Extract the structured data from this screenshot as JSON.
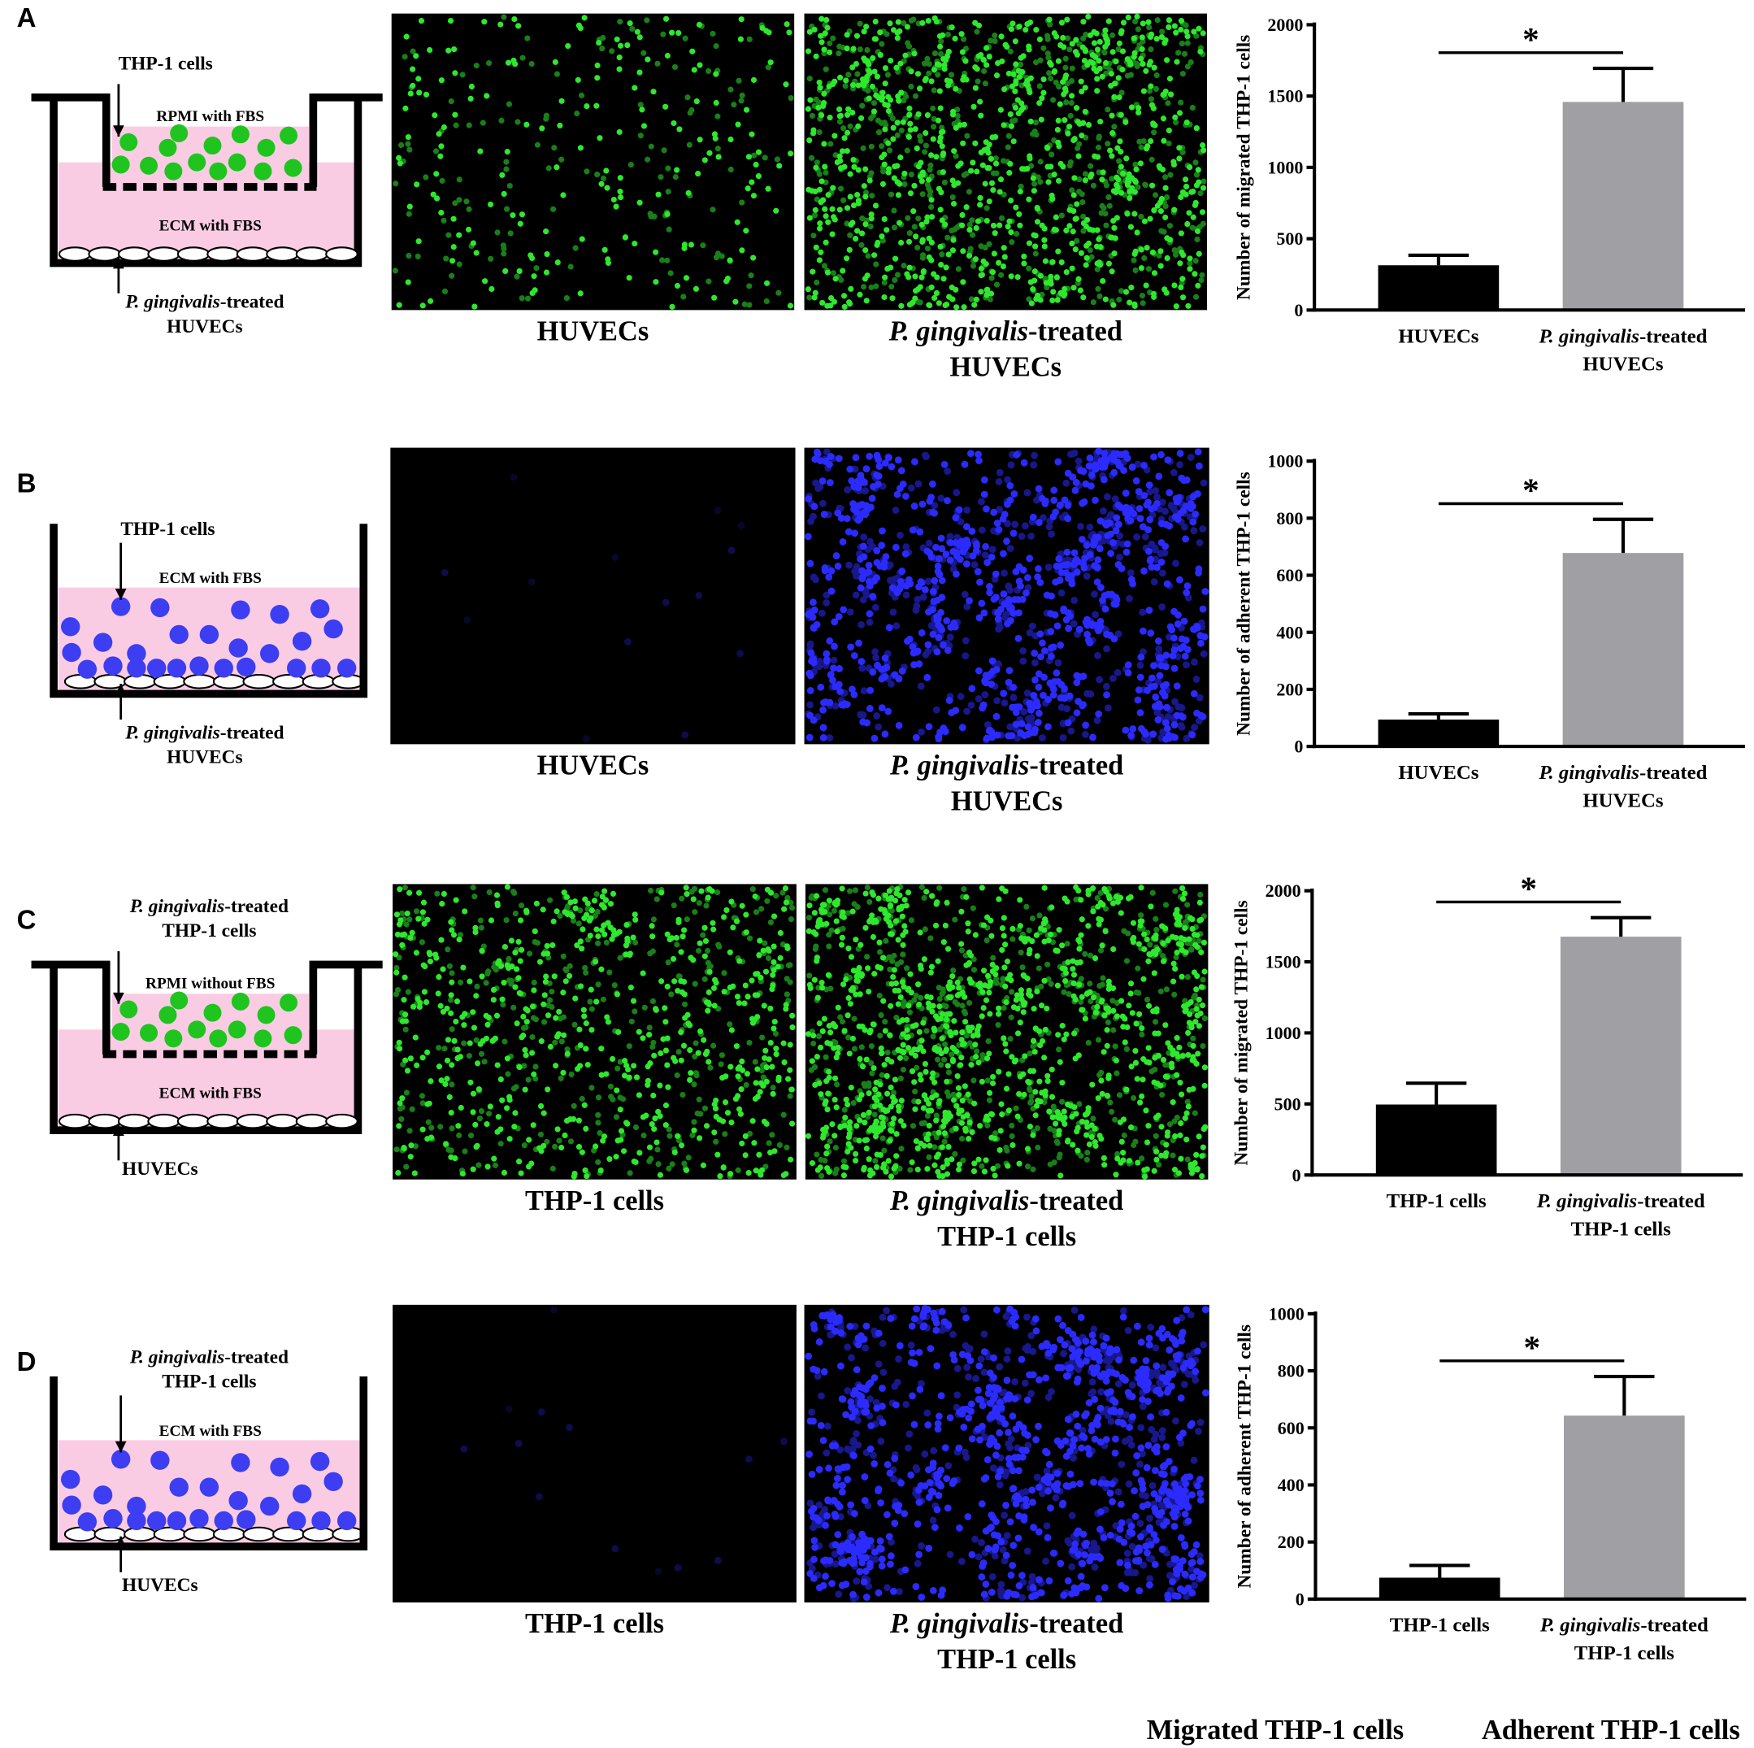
{
  "panels": [
    {
      "letter": "A",
      "diagram": {
        "layout": "transwell",
        "cell_color": "#1fc41f",
        "top_label": [
          [
            {
              "text": "THP-1 cells"
            }
          ]
        ],
        "insert_medium": "RPMI with FBS",
        "well_medium": "ECM with FBS",
        "bottom_label": [
          [
            {
              "text": "P. gingivalis",
              "italic": true
            },
            {
              "text": "-treated"
            }
          ],
          [
            {
              "text": "HUVECs"
            }
          ]
        ]
      },
      "images": [
        {
          "color": "#2ee82e",
          "caption": [
            [
              {
                "text": "HUVECs"
              }
            ]
          ]
        },
        {
          "color": "#2ee82e",
          "caption": [
            [
              {
                "text": "P. gingivalis",
                "italic": true
              },
              {
                "text": "-treated"
              }
            ],
            [
              {
                "text": "HUVECs"
              }
            ]
          ]
        }
      ]
    },
    {
      "letter": "B",
      "diagram": {
        "layout": "plate",
        "cell_color": "#3d3df2",
        "top_label": [
          [
            {
              "text": "THP-1 cells"
            }
          ]
        ],
        "well_medium": "ECM with FBS",
        "bottom_label": [
          [
            {
              "text": "P. gingivalis",
              "italic": true
            },
            {
              "text": "-treated"
            }
          ],
          [
            {
              "text": "HUVECs"
            }
          ]
        ]
      },
      "images": [
        {
          "color": "#2b2bff",
          "caption": [
            [
              {
                "text": "HUVECs"
              }
            ]
          ]
        },
        {
          "color": "#2b2bff",
          "caption": [
            [
              {
                "text": "P. gingivalis",
                "italic": true
              },
              {
                "text": "-treated"
              }
            ],
            [
              {
                "text": "HUVECs"
              }
            ]
          ]
        }
      ]
    },
    {
      "letter": "C",
      "diagram": {
        "layout": "transwell",
        "cell_color": "#1fc41f",
        "top_label": [
          [
            {
              "text": "P. gingivalis",
              "italic": true
            },
            {
              "text": "-treated"
            }
          ],
          [
            {
              "text": "THP-1 cells"
            }
          ]
        ],
        "insert_medium": "RPMI without FBS",
        "well_medium": "ECM with FBS",
        "bottom_label": [
          [
            {
              "text": "HUVECs"
            }
          ]
        ]
      },
      "images": [
        {
          "color": "#2ee82e",
          "caption": [
            [
              {
                "text": "THP-1 cells"
              }
            ]
          ]
        },
        {
          "color": "#2ee82e",
          "caption": [
            [
              {
                "text": "P. gingivalis",
                "italic": true
              },
              {
                "text": "-treated"
              }
            ],
            [
              {
                "text": "THP-1 cells"
              }
            ]
          ]
        }
      ]
    },
    {
      "letter": "D",
      "diagram": {
        "layout": "plate",
        "cell_color": "#3d3df2",
        "top_label": [
          [
            {
              "text": "P. gingivalis",
              "italic": true
            },
            {
              "text": "-treated"
            }
          ],
          [
            {
              "text": "THP-1 cells"
            }
          ]
        ],
        "well_medium": "ECM with FBS",
        "bottom_label": [
          [
            {
              "text": "HUVECs"
            }
          ]
        ]
      },
      "images": [
        {
          "color": "#2b2bff",
          "caption": [
            [
              {
                "text": "THP-1 cells"
              }
            ]
          ]
        },
        {
          "color": "#2b2bff",
          "caption": [
            [
              {
                "text": "P. gingivalis",
                "italic": true
              },
              {
                "text": "-treated"
              }
            ],
            [
              {
                "text": "THP-1 cells"
              }
            ]
          ]
        }
      ]
    }
  ],
  "chart_data": [
    {
      "type": "bar",
      "ylabel": "Number of migrated THP-1 cells",
      "categories": [
        [
          [
            {
              "text": "HUVECs"
            }
          ]
        ],
        [
          [
            {
              "text": "P. gingivalis",
              "italic": true
            },
            {
              "text": "-treated"
            }
          ],
          [
            {
              "text": "HUVECs"
            }
          ]
        ]
      ],
      "values": [
        314,
        1459
      ],
      "errors": [
        70,
        235
      ],
      "colors": [
        "#000000",
        "#a0a0a4"
      ],
      "ylim": [
        0,
        2000
      ],
      "yticks": [
        0,
        500,
        1000,
        1500,
        2000
      ],
      "significance": {
        "label": "*",
        "between": [
          0,
          1
        ]
      }
    },
    {
      "type": "bar",
      "ylabel": "Number of adherent THP-1 cells",
      "categories": [
        [
          [
            {
              "text": "HUVECs"
            }
          ]
        ],
        [
          [
            {
              "text": "P. gingivalis",
              "italic": true
            },
            {
              "text": "-treated"
            }
          ],
          [
            {
              "text": "HUVECs"
            }
          ]
        ]
      ],
      "values": [
        94,
        678
      ],
      "errors": [
        20,
        118
      ],
      "colors": [
        "#000000",
        "#a0a0a4"
      ],
      "ylim": [
        0,
        1000
      ],
      "yticks": [
        0,
        200,
        400,
        600,
        800,
        1000
      ],
      "significance": {
        "label": "*",
        "between": [
          0,
          1
        ]
      }
    },
    {
      "type": "bar",
      "ylabel": "Number of migrated THP-1 cells",
      "categories": [
        [
          [
            {
              "text": "THP-1 cells"
            }
          ]
        ],
        [
          [
            {
              "text": "P. gingivalis",
              "italic": true
            },
            {
              "text": "-treated"
            }
          ],
          [
            {
              "text": "THP-1 cells"
            }
          ]
        ]
      ],
      "values": [
        496,
        1677
      ],
      "errors": [
        150,
        134
      ],
      "colors": [
        "#000000",
        "#a0a0a4"
      ],
      "ylim": [
        0,
        2000
      ],
      "yticks": [
        0,
        500,
        1000,
        1500,
        2000
      ],
      "significance": {
        "label": "*",
        "between": [
          0,
          1
        ]
      }
    },
    {
      "type": "bar",
      "ylabel": "Number of adherent THP-1 cells",
      "categories": [
        [
          [
            {
              "text": "THP-1 cells"
            }
          ]
        ],
        [
          [
            {
              "text": "P. gingivalis",
              "italic": true
            },
            {
              "text": "-treated"
            }
          ],
          [
            {
              "text": "THP-1 cells"
            }
          ]
        ]
      ],
      "values": [
        75,
        643
      ],
      "errors": [
        43,
        137
      ],
      "colors": [
        "#000000",
        "#a0a0a4"
      ],
      "ylim": [
        0,
        1000
      ],
      "yticks": [
        0,
        200,
        400,
        600,
        800,
        1000
      ],
      "significance": {
        "label": "*",
        "between": [
          0,
          1
        ]
      }
    }
  ],
  "legend": [
    {
      "text": "Migrated THP-1 cells",
      "color": "#23962a"
    },
    {
      "text": "Adherent THP-1 cells",
      "color": "#2036d6"
    }
  ]
}
